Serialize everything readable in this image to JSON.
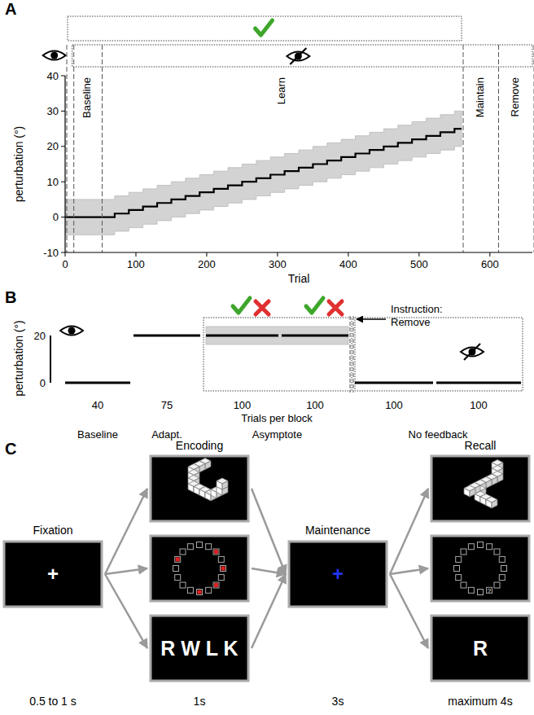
{
  "panel_labels": [
    "A",
    "B",
    "C"
  ],
  "chart_data": {
    "type": "line",
    "x_label": "Trial",
    "y_label": "perturbation (°)",
    "xlim": [
      0,
      660
    ],
    "ylim": [
      -10,
      40
    ],
    "xticks": [
      0,
      100,
      200,
      300,
      400,
      500,
      600
    ],
    "yticks": [
      -10,
      0,
      10,
      20,
      30,
      40
    ],
    "x": [
      0,
      50,
      70,
      90,
      110,
      130,
      150,
      170,
      190,
      210,
      230,
      250,
      270,
      290,
      310,
      330,
      350,
      370,
      390,
      410,
      430,
      450,
      470,
      490,
      510,
      530,
      550,
      560
    ],
    "series": [
      {
        "color": "#000000",
        "line_style": "step",
        "values": [
          0,
          0,
          1,
          2,
          3,
          4,
          5,
          6,
          7,
          8,
          9,
          10,
          11,
          12,
          13,
          14,
          15,
          16,
          17,
          18,
          19,
          20,
          21,
          22,
          23,
          24,
          25,
          25
        ],
        "error": [
          5,
          5,
          5,
          5,
          5,
          5,
          5,
          5,
          5,
          5,
          5,
          5,
          5,
          5,
          5,
          5,
          5,
          5,
          5,
          5,
          5,
          5,
          5,
          5,
          5,
          5,
          5,
          5
        ]
      }
    ],
    "phases": [
      {
        "label": "Baseline",
        "start": 10,
        "end": 50
      },
      {
        "label": "Learn",
        "start": 50,
        "end": 560
      },
      {
        "label": "Maintain",
        "start": 560,
        "end": 610
      },
      {
        "label": "Remove",
        "start": 610,
        "end": 660
      }
    ],
    "reward_feedback": [
      0,
      560
    ],
    "no_vision": [
      10,
      660
    ]
  },
  "panel_b": {
    "scale_label": "perturbation (°)",
    "scale_ticks": [
      0,
      20
    ],
    "blocks": [
      {
        "trials": "40",
        "perturbation": 0
      },
      {
        "trials": "75",
        "perturbation": 20
      },
      {
        "trials": "100",
        "perturbation": 20
      },
      {
        "trials": "100",
        "perturbation": 20
      },
      {
        "trials": "100",
        "perturbation": 0
      },
      {
        "trials": "100",
        "perturbation": 0
      }
    ],
    "trials_label": "Trials per block",
    "phases": [
      {
        "label": "Baseline",
        "blocks": [
          0,
          0
        ]
      },
      {
        "label": "Adapt.",
        "blocks": [
          1,
          1
        ]
      },
      {
        "label": "Asymptote",
        "blocks": [
          2,
          3
        ]
      },
      {
        "label": "No feedback",
        "blocks": [
          4,
          5
        ]
      }
    ],
    "instruction": [
      "Instruction:",
      "Remove"
    ]
  },
  "panel_c": {
    "stages": [
      {
        "label": "Fixation",
        "duration": "0.5 to 1 s",
        "symbol": "+"
      },
      {
        "label": "Encoding",
        "duration": "1s"
      },
      {
        "label": "Maintenance",
        "duration": "3s",
        "symbol": "+"
      },
      {
        "label": "Recall",
        "duration": "maximum 4s"
      }
    ],
    "verbal_encoding": "R W L K",
    "verbal_recall": "R",
    "spatial_recall": "?"
  }
}
